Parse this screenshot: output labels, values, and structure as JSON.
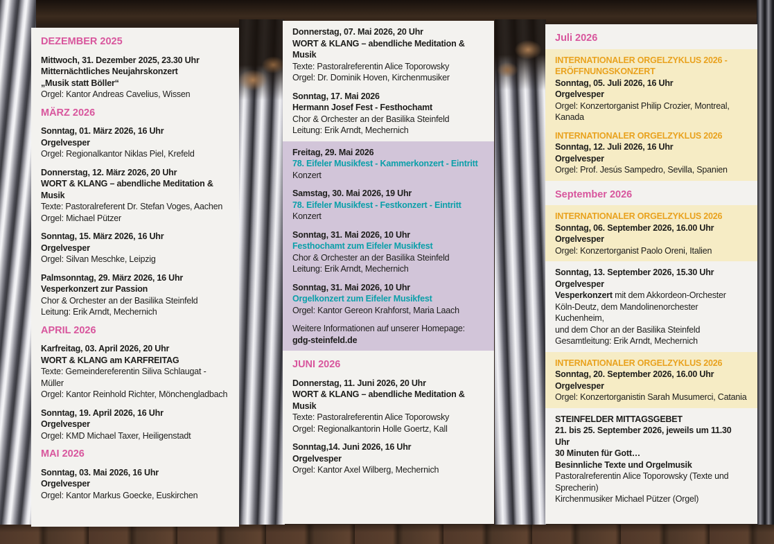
{
  "palette": {
    "month_heading": "#d8569d",
    "musikfest_title": "#0b9fa9",
    "orgelzyklus_title": "#e9a21e",
    "body_text": "#1d1d1b",
    "panel_white": "#f3f2ef",
    "panel_purple": "#d2c5d9",
    "panel_yellow": "#f6ecc5"
  },
  "columns": [
    {
      "name": "program-column-december-may",
      "blocks": [
        {
          "bg": "white",
          "paras": [
            {
              "kind": "month",
              "lines": [
                {
                  "s": "m",
                  "t": "DEZEMBER 2025"
                }
              ]
            },
            {
              "kind": "event",
              "lines": [
                {
                  "s": "b",
                  "t": "Mittwoch, 31. Dezember 2025, 23.30 Uhr"
                },
                {
                  "s": "b",
                  "t": "Mitternächtliches Neujahrskonzert"
                },
                {
                  "s": "b",
                  "t": "„Musik statt Böller“"
                },
                {
                  "s": "r",
                  "t": "Orgel: Kantor Andreas Cavelius, Wissen"
                }
              ]
            },
            {
              "kind": "month",
              "lines": [
                {
                  "s": "m",
                  "t": "MÄRZ 2026"
                }
              ]
            },
            {
              "kind": "event",
              "lines": [
                {
                  "s": "b",
                  "t": "Sonntag, 01. März 2026, 16 Uhr"
                },
                {
                  "s": "b",
                  "t": "Orgelvesper"
                },
                {
                  "s": "r",
                  "t": "Orgel: Regionalkantor Niklas Piel, Krefeld"
                }
              ]
            },
            {
              "kind": "event",
              "lines": [
                {
                  "s": "b",
                  "t": "Donnerstag, 12. März 2026, 20 Uhr"
                },
                {
                  "s": "b",
                  "t": "WORT & KLANG – abendliche Meditation & Musik"
                },
                {
                  "s": "r",
                  "t": "Texte: Pastoralreferent Dr. Stefan Voges, Aachen"
                },
                {
                  "s": "r",
                  "t": "Orgel: Michael Pützer"
                }
              ]
            },
            {
              "kind": "event",
              "lines": [
                {
                  "s": "b",
                  "t": "Sonntag, 15. März 2026, 16 Uhr"
                },
                {
                  "s": "b",
                  "t": "Orgelvesper"
                },
                {
                  "s": "r",
                  "t": "Orgel: Silvan Meschke, Leipzig"
                }
              ]
            },
            {
              "kind": "event",
              "lines": [
                {
                  "s": "b",
                  "t": "Palmsonntag, 29. März 2026, 16 Uhr"
                },
                {
                  "s": "b",
                  "t": "Vesperkonzert zur Passion"
                },
                {
                  "s": "r",
                  "t": "Chor & Orchester an der Basilika Steinfeld"
                },
                {
                  "s": "r",
                  "t": "Leitung: Erik Arndt, Mechernich"
                }
              ]
            },
            {
              "kind": "month",
              "lines": [
                {
                  "s": "m",
                  "t": "APRIL 2026"
                }
              ]
            },
            {
              "kind": "event",
              "lines": [
                {
                  "s": "b",
                  "t": "Karfreitag, 03. April 2026, 20 Uhr"
                },
                {
                  "s": "b",
                  "t": "WORT & KLANG am KARFREITAG"
                },
                {
                  "s": "r",
                  "t": "Texte: Gemeindereferentin Siliva Schlaugat - Müller"
                },
                {
                  "s": "r",
                  "t": "Orgel: Kantor Reinhold Richter, Mönchengladbach"
                }
              ]
            },
            {
              "kind": "event",
              "lines": [
                {
                  "s": "b",
                  "t": "Sonntag, 19. April 2026, 16 Uhr"
                },
                {
                  "s": "b",
                  "t": "Orgelvesper"
                },
                {
                  "s": "r",
                  "t": "Orgel: KMD Michael Taxer, Heiligenstadt"
                }
              ]
            },
            {
              "kind": "month",
              "lines": [
                {
                  "s": "m",
                  "t": "MAI 2026"
                }
              ]
            },
            {
              "kind": "event",
              "lines": [
                {
                  "s": "b",
                  "t": "Sonntag, 03. Mai 2026, 16 Uhr"
                },
                {
                  "s": "b",
                  "t": "Orgelvesper"
                },
                {
                  "s": "r",
                  "t": "Orgel: Kantor Markus Goecke, Euskirchen"
                }
              ]
            }
          ]
        }
      ]
    },
    {
      "name": "program-column-may-june",
      "blocks": [
        {
          "bg": "white",
          "paras": [
            {
              "kind": "event",
              "lines": [
                {
                  "s": "b",
                  "t": "Donnerstag, 07. Mai 2026, 20 Uhr"
                },
                {
                  "s": "b",
                  "t": "WORT & KLANG – abendliche Meditation & Musik"
                },
                {
                  "s": "r",
                  "t": "Texte: Pastoralreferentin Alice Toporowsky"
                },
                {
                  "s": "r",
                  "t": "Orgel: Dr. Dominik Hoven, Kirchenmusiker"
                }
              ]
            },
            {
              "kind": "event",
              "lines": [
                {
                  "s": "b",
                  "t": "Sonntag, 17. Mai 2026"
                },
                {
                  "s": "b",
                  "t": "Hermann Josef Fest - Festhochamt"
                },
                {
                  "s": "r",
                  "t": "Chor & Orchester an der Basilika Steinfeld"
                },
                {
                  "s": "r",
                  "t": "Leitung: Erik Arndt, Mechernich"
                }
              ]
            }
          ]
        },
        {
          "bg": "purple",
          "paras": [
            {
              "kind": "event",
              "lines": [
                {
                  "s": "b",
                  "t": "Freitag, 29. Mai 2026"
                },
                {
                  "s": "t",
                  "t": "78. Eifeler Musikfest - Kammerkonzert - Eintritt"
                },
                {
                  "s": "r",
                  "t": "Konzert"
                }
              ]
            },
            {
              "kind": "event",
              "lines": [
                {
                  "s": "b",
                  "t": "Samstag, 30. Mai 2026, 19 Uhr"
                },
                {
                  "s": "t",
                  "t": "78. Eifeler Musikfest - Festkonzert - Eintritt"
                },
                {
                  "s": "r",
                  "t": "Konzert"
                }
              ]
            },
            {
              "kind": "event",
              "lines": [
                {
                  "s": "b",
                  "t": "Sonntag, 31. Mai 2026, 10 Uhr"
                },
                {
                  "s": "t",
                  "t": "Festhochamt zum Eifeler Musikfest"
                },
                {
                  "s": "r",
                  "t": "Chor & Orchester an der Basilika Steinfeld"
                },
                {
                  "s": "r",
                  "t": "Leitung: Erik Arndt, Mechernich"
                }
              ]
            },
            {
              "kind": "event",
              "lines": [
                {
                  "s": "b",
                  "t": "Sonntag, 31. Mai 2026, 10 Uhr"
                },
                {
                  "s": "t",
                  "t": "Orgelkonzert zum Eifeler Musikfest"
                },
                {
                  "s": "r",
                  "t": "Orgel: Kantor Gereon Krahforst, Maria Laach"
                }
              ]
            },
            {
              "kind": "event",
              "lines": [
                {
                  "s": "r",
                  "t": "Weitere Informationen auf unserer Homepage:"
                },
                {
                  "s": "b",
                  "t": "gdg-steinfeld.de"
                }
              ]
            }
          ]
        },
        {
          "bg": "white",
          "paras": [
            {
              "kind": "month",
              "lines": [
                {
                  "s": "m",
                  "t": "JUNI 2026"
                }
              ]
            },
            {
              "kind": "event",
              "lines": [
                {
                  "s": "b",
                  "t": "Donnerstag, 11. Juni 2026, 20 Uhr"
                },
                {
                  "s": "b",
                  "t": "WORT & KLANG – abendliche Meditation & Musik"
                },
                {
                  "s": "r",
                  "t": "Texte: Pastoralreferentin Alice Toporowsky"
                },
                {
                  "s": "r",
                  "t": "Orgel: Regionalkantorin Holle Goertz, Kall"
                }
              ]
            },
            {
              "kind": "event",
              "lines": [
                {
                  "s": "b",
                  "t": "Sonntag,14. Juni 2026, 16 Uhr"
                },
                {
                  "s": "b",
                  "t": "Orgelvesper"
                },
                {
                  "s": "r",
                  "t": "Orgel: Kantor Axel Wilberg, Mechernich"
                }
              ]
            }
          ]
        }
      ]
    },
    {
      "name": "program-column-july-september",
      "blocks": [
        {
          "bg": "white",
          "paras": [
            {
              "kind": "month",
              "lines": [
                {
                  "s": "m",
                  "t": "Juli 2026"
                }
              ]
            }
          ]
        },
        {
          "bg": "yellow",
          "paras": [
            {
              "kind": "event",
              "lines": [
                {
                  "s": "o",
                  "t": "INTERNATIONALER ORGELZYKLUS 2026 -"
                },
                {
                  "s": "o",
                  "t": "ERÖFFNUNGSKONZERT"
                },
                {
                  "s": "b",
                  "t": "Sonntag, 05. Juli 2026, 16 Uhr"
                },
                {
                  "s": "b",
                  "t": "Orgelvesper"
                },
                {
                  "s": "r",
                  "t": "Orgel: Konzertorganist Philip Crozier, Montreal,"
                },
                {
                  "s": "r",
                  "t": "Kanada"
                }
              ]
            },
            {
              "kind": "event",
              "lines": [
                {
                  "s": "o",
                  "t": "INTERNATIONALER ORGELZYKLUS 2026"
                },
                {
                  "s": "b",
                  "t": "Sonntag, 12. Juli 2026, 16 Uhr"
                },
                {
                  "s": "b",
                  "t": "Orgelvesper"
                },
                {
                  "s": "r",
                  "t": "Orgel: Prof. Jesús Sampedro, Sevilla, Spanien"
                }
              ]
            }
          ]
        },
        {
          "bg": "white",
          "paras": [
            {
              "kind": "month",
              "lines": [
                {
                  "s": "m",
                  "t": "September 2026"
                }
              ]
            }
          ]
        },
        {
          "bg": "yellow",
          "paras": [
            {
              "kind": "event",
              "lines": [
                {
                  "s": "o",
                  "t": "INTERNATIONALER ORGELZYKLUS 2026"
                },
                {
                  "s": "b",
                  "t": "Sonntag, 06. September 2026, 16.00 Uhr"
                },
                {
                  "s": "b",
                  "t": "Orgelvesper"
                },
                {
                  "s": "r",
                  "t": "Orgel: Konzertorganist Paolo Oreni, Italien"
                }
              ]
            }
          ]
        },
        {
          "bg": "white",
          "paras": [
            {
              "kind": "event",
              "lines": [
                {
                  "s": "b",
                  "t": "Sonntag, 13. September 2026, 15.30 Uhr"
                },
                {
                  "s": "b",
                  "t": "Orgelvesper"
                },
                {
                  "segs": [
                    {
                      "s": "b",
                      "t": "Vesperkonzert"
                    },
                    {
                      "s": "r",
                      "t": " mit dem Akkordeon-Orchester"
                    }
                  ]
                },
                {
                  "s": "r",
                  "t": "Köln-Deutz, dem Mandolinenorchester Kuchenheim,"
                },
                {
                  "s": "r",
                  "t": "und dem Chor an der Basilika Steinfeld"
                },
                {
                  "s": "r",
                  "t": "Gesamtleitung: Erik Arndt, Mechernich"
                }
              ]
            }
          ]
        },
        {
          "bg": "yellow",
          "paras": [
            {
              "kind": "event",
              "lines": [
                {
                  "s": "o",
                  "t": "INTERNATIONALER ORGELZYKLUS 2026"
                },
                {
                  "s": "b",
                  "t": "Sonntag, 20. September 2026, 16.00 Uhr"
                },
                {
                  "s": "b",
                  "t": "Orgelvesper"
                },
                {
                  "s": "r",
                  "t": "Orgel: Konzertorganistin Sarah Musumerci, Catania"
                }
              ]
            }
          ]
        },
        {
          "bg": "white",
          "paras": [
            {
              "kind": "event",
              "lines": [
                {
                  "s": "b",
                  "t": "STEINFELDER MITTAGSGEBET"
                },
                {
                  "s": "b",
                  "t": "21. bis 25. September 2026, jeweils um 11.30 Uhr"
                },
                {
                  "s": "b",
                  "t": "30 Minuten für Gott…"
                },
                {
                  "s": "b",
                  "t": "Besinnliche Texte und Orgelmusik"
                },
                {
                  "s": "r",
                  "t": "Pastoralreferentin Alice Toporowsky (Texte und Sprecherin)"
                },
                {
                  "s": "r",
                  "t": "Kirchenmusiker Michael Pützer (Orgel)"
                }
              ]
            }
          ]
        }
      ]
    }
  ]
}
